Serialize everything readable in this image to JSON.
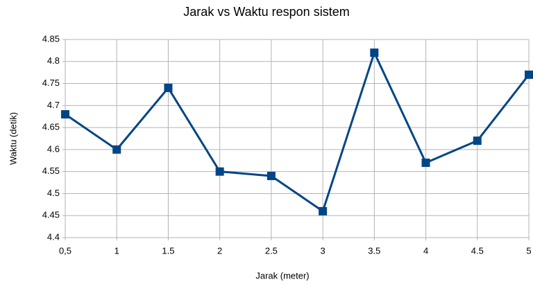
{
  "chart_data": {
    "type": "line",
    "title": "Jarak vs Waktu respon sistem",
    "x_label": "Jarak (meter)",
    "y_label": "Waktu (detik)",
    "categories": [
      "0,5",
      "1",
      "1.5",
      "2",
      "2.5",
      "3",
      "3.5",
      "4",
      "4.5",
      "5"
    ],
    "series": [
      {
        "name": "Waktu",
        "color": "#004586",
        "values": [
          4.68,
          4.6,
          4.74,
          4.55,
          4.54,
          4.46,
          4.82,
          4.57,
          4.62,
          4.77
        ]
      }
    ],
    "ylim": [
      4.4,
      4.85
    ],
    "yticks": [
      4.4,
      4.45,
      4.5,
      4.55,
      4.6,
      4.65,
      4.7,
      4.75,
      4.8,
      4.85
    ],
    "grid": true
  }
}
